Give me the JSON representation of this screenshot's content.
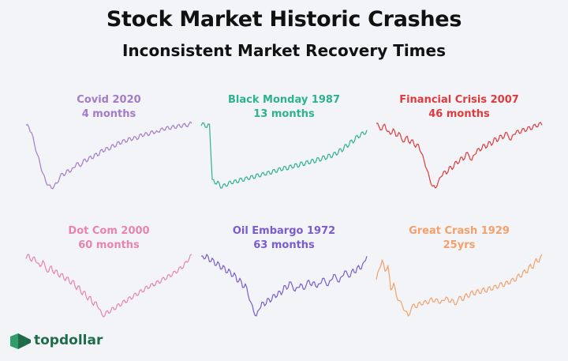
{
  "header": {
    "title": "Stock Market Historic Crashes",
    "subtitle": "Inconsistent Market Recovery Times"
  },
  "brand": {
    "name": "topdollar",
    "color": "#1f6b4a"
  },
  "chart_data": [
    {
      "type": "line",
      "title": "Covid 2020",
      "subtitle": "4 months",
      "color": "#a37bc9",
      "values": [
        70,
        68,
        62,
        50,
        40,
        30,
        20,
        12,
        8,
        5,
        7,
        10,
        16,
        20,
        19,
        24,
        22,
        26,
        31,
        28,
        30,
        35,
        33,
        38,
        36,
        41,
        39,
        45,
        43,
        47,
        45,
        50,
        48,
        53,
        51,
        55,
        53,
        57,
        55,
        58,
        56,
        61,
        59,
        62,
        60,
        64,
        62,
        63,
        66,
        65,
        68,
        66,
        69,
        67,
        70,
        68,
        71,
        69,
        71,
        72
      ]
    },
    {
      "type": "line",
      "title": "Black Monday 1987",
      "subtitle": "13 months",
      "color": "#2eb28e",
      "values": [
        82,
        85,
        80,
        84,
        20,
        15,
        18,
        10,
        14,
        12,
        17,
        15,
        19,
        16,
        21,
        18,
        22,
        20,
        24,
        21,
        26,
        23,
        27,
        25,
        29,
        26,
        31,
        28,
        33,
        30,
        35,
        31,
        36,
        33,
        38,
        34,
        40,
        36,
        41,
        38,
        43,
        39,
        45,
        41,
        47,
        43,
        49,
        45,
        51,
        48,
        55,
        52,
        60,
        57,
        65,
        62,
        70,
        68,
        74,
        72,
        77
      ]
    },
    {
      "type": "line",
      "title": "Financial Crisis 2007",
      "subtitle": "46 months",
      "color": "#e03a3e",
      "values": [
        80,
        76,
        73,
        79,
        71,
        68,
        74,
        66,
        70,
        63,
        60,
        66,
        58,
        62,
        54,
        57,
        48,
        40,
        30,
        20,
        12,
        10,
        16,
        22,
        28,
        25,
        33,
        30,
        38,
        36,
        43,
        40,
        48,
        45,
        40,
        46,
        52,
        50,
        57,
        53,
        60,
        56,
        64,
        60,
        67,
        63,
        70,
        66,
        62,
        68,
        72,
        69,
        74,
        71,
        76,
        73,
        78,
        76,
        80,
        78
      ]
    },
    {
      "type": "line",
      "title": "Dot Com 2000",
      "subtitle": "60 months",
      "color": "#e884ae",
      "values": [
        85,
        90,
        82,
        87,
        80,
        76,
        83,
        74,
        70,
        77,
        68,
        72,
        64,
        68,
        60,
        64,
        56,
        60,
        50,
        54,
        44,
        48,
        38,
        42,
        32,
        36,
        28,
        22,
        20,
        26,
        24,
        30,
        28,
        34,
        32,
        38,
        36,
        42,
        40,
        46,
        44,
        50,
        48,
        54,
        52,
        57,
        55,
        60,
        58,
        64,
        62,
        67,
        66,
        71,
        70,
        76,
        75,
        82,
        84,
        90
      ]
    },
    {
      "type": "line",
      "title": "Oil Embargo 1972",
      "subtitle": "63 months",
      "color": "#7b5bd0",
      "values": [
        90,
        87,
        92,
        84,
        88,
        80,
        84,
        76,
        80,
        72,
        76,
        68,
        72,
        62,
        66,
        56,
        60,
        48,
        40,
        30,
        25,
        32,
        40,
        36,
        44,
        40,
        48,
        45,
        52,
        48,
        58,
        54,
        62,
        58,
        52,
        56,
        60,
        54,
        58,
        64,
        58,
        62,
        56,
        60,
        66,
        62,
        58,
        64,
        70,
        66,
        62,
        68,
        74,
        70,
        68,
        76,
        72,
        80,
        76,
        84,
        90
      ]
    },
    {
      "type": "line",
      "title": "Great Crash 1929",
      "subtitle": "25yrs",
      "color": "#f3a06b",
      "values": [
        60,
        75,
        88,
        72,
        80,
        45,
        55,
        35,
        30,
        22,
        15,
        8,
        18,
        25,
        20,
        28,
        24,
        30,
        26,
        34,
        28,
        32,
        26,
        30,
        35,
        28,
        32,
        24,
        30,
        36,
        30,
        40,
        35,
        44,
        38,
        46,
        40,
        48,
        42,
        50,
        45,
        52,
        48,
        56,
        50,
        58,
        54,
        62,
        58,
        68,
        64,
        74,
        70,
        82,
        76,
        90,
        85,
        96
      ]
    }
  ]
}
